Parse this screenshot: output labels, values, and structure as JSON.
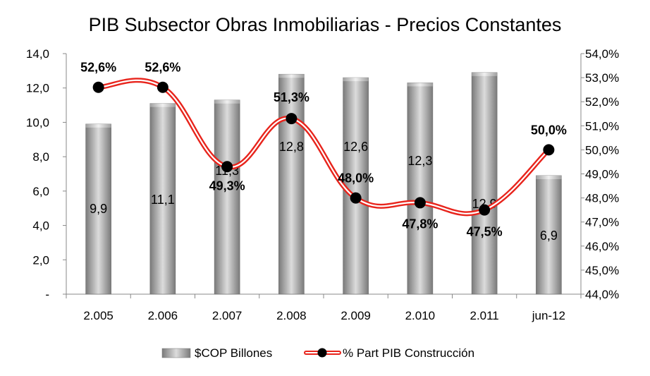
{
  "chart_data": {
    "type": "bar",
    "title": "PIB Subsector Obras Inmobiliarias - Precios Constantes",
    "categories": [
      "2.005",
      "2.006",
      "2.007",
      "2.008",
      "2.009",
      "2.010",
      "2.011",
      "jun-12"
    ],
    "series": [
      {
        "name": "$COP Billones",
        "type": "bar",
        "axis": "left",
        "values": [
          9.9,
          11.1,
          11.3,
          12.8,
          12.6,
          12.3,
          12.9,
          6.9
        ],
        "labels": [
          "9,9",
          "11,1",
          "11,3",
          "12,8",
          "12,6",
          "12,3",
          "12,9",
          "6,9"
        ]
      },
      {
        "name": "% Part PIB Construcción",
        "type": "line",
        "axis": "right",
        "values": [
          52.6,
          52.6,
          49.3,
          51.3,
          48.0,
          47.8,
          47.5,
          50.0
        ],
        "labels": [
          "52,6%",
          "52,6%",
          "49,3%",
          "51,3%",
          "48,0%",
          "47,8%",
          "47,5%",
          "50,0%"
        ]
      }
    ],
    "left_axis": {
      "min": 0,
      "max": 14,
      "ticks": [
        0,
        2,
        4,
        6,
        8,
        10,
        12,
        14
      ],
      "tick_labels": [
        "-",
        "2,0",
        "4,0",
        "6,0",
        "8,0",
        "10,0",
        "12,0",
        "14,0"
      ]
    },
    "right_axis": {
      "min": 44,
      "max": 54,
      "ticks": [
        44,
        45,
        46,
        47,
        48,
        49,
        50,
        51,
        52,
        53,
        54
      ],
      "tick_labels": [
        "44,0%",
        "45,0%",
        "46,0%",
        "47,0%",
        "48,0%",
        "49,0%",
        "50,0%",
        "51,0%",
        "52,0%",
        "53,0%",
        "54,0%"
      ]
    },
    "grid": false,
    "legend_position": "bottom",
    "colors": {
      "bar": "#9a9a9a",
      "line": "#e8241c",
      "marker": "#000000"
    }
  }
}
